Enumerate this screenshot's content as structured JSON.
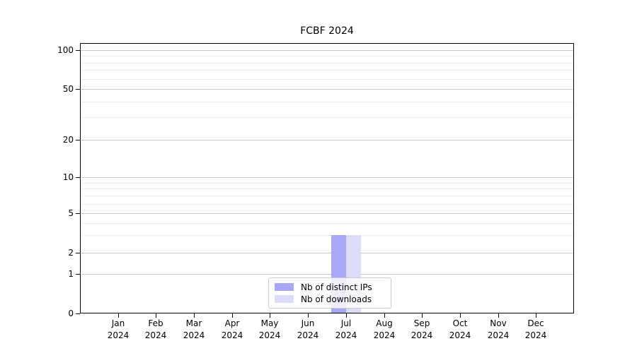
{
  "figure": {
    "background": "#ffffff"
  },
  "chart_data": {
    "type": "bar",
    "title": "FCBF 2024",
    "categories": [
      "Jan 2024",
      "Feb 2024",
      "Mar 2024",
      "Apr 2024",
      "May 2024",
      "Jun 2024",
      "Jul 2024",
      "Aug 2024",
      "Sep 2024",
      "Oct 2024",
      "Nov 2024",
      "Dec 2024"
    ],
    "series": [
      {
        "name": "Nb of distinct IPs",
        "color": "#a8a8f6",
        "values": [
          0,
          0,
          0,
          0,
          0,
          0,
          3,
          0,
          0,
          0,
          0,
          0
        ]
      },
      {
        "name": "Nb of downloads",
        "color": "#dcdcf9",
        "values": [
          0,
          0,
          0,
          0,
          0,
          0,
          3,
          0,
          0,
          0,
          0,
          0
        ]
      }
    ],
    "xlabel": "",
    "ylabel": "",
    "yscale": "log-like",
    "ylim": [
      0,
      110
    ],
    "yticks": [
      0,
      1,
      2,
      5,
      10,
      20,
      50,
      100
    ],
    "minor_yticks": [
      3,
      4,
      6,
      7,
      8,
      9,
      30,
      40,
      60,
      70,
      80,
      90
    ],
    "grid": "horizontal",
    "legend": {
      "position": "bottom-center-inside",
      "entries": [
        "Nb of distinct IPs",
        "Nb of downloads"
      ]
    }
  },
  "colors": {
    "bar_distinct_ips": "#a8a8f6",
    "bar_downloads": "#dcdcf9",
    "major_grid": "#c9c9c9",
    "minor_grid": "#ededed",
    "spine": "#000000",
    "legend_border": "#cccccc",
    "text": "#000000"
  }
}
